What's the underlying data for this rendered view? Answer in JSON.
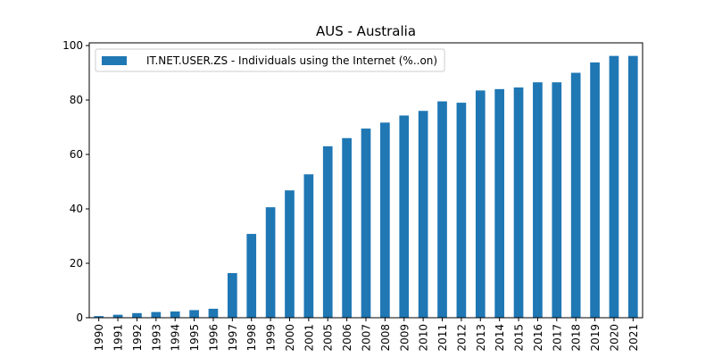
{
  "chart_data": {
    "type": "bar",
    "title": "AUS - Australia",
    "xlabel": "",
    "ylabel": "",
    "categories": [
      "1990",
      "1991",
      "1992",
      "1993",
      "1994",
      "1995",
      "1996",
      "1997",
      "1998",
      "1999",
      "2000",
      "2001",
      "2005",
      "2006",
      "2007",
      "2008",
      "2009",
      "2010",
      "2011",
      "2012",
      "2013",
      "2014",
      "2015",
      "2016",
      "2017",
      "2018",
      "2019",
      "2020",
      "2021"
    ],
    "series": [
      {
        "name": "IT.NET.USER.ZS - Individuals using the Internet (%..on)",
        "color": "#1f77b4",
        "values": [
          0.6,
          1.1,
          1.7,
          2.1,
          2.3,
          2.8,
          3.3,
          16.4,
          30.8,
          40.6,
          46.8,
          52.7,
          63.0,
          66.0,
          69.5,
          71.7,
          74.3,
          76.0,
          79.5,
          79.0,
          83.5,
          84.0,
          84.6,
          86.5,
          86.5,
          90.0,
          93.8,
          96.2,
          96.2
        ]
      }
    ],
    "ylim": [
      0,
      101
    ],
    "yticks": [
      0,
      20,
      40,
      60,
      80,
      100
    ],
    "legend_position": "top-left",
    "grid": false
  }
}
